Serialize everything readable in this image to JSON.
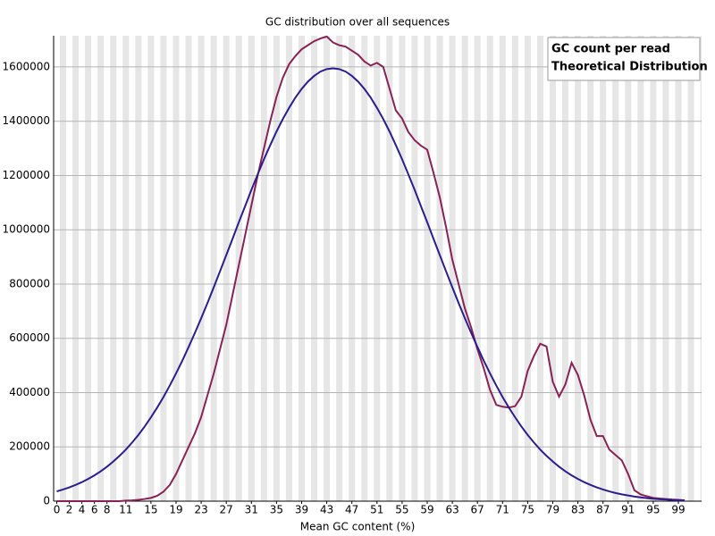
{
  "chart_data": {
    "type": "line",
    "title": "GC distribution over all sequences",
    "x_label": "Mean GC content (%)",
    "x": [
      0,
      1,
      2,
      3,
      4,
      5,
      6,
      7,
      8,
      9,
      10,
      11,
      12,
      13,
      14,
      15,
      16,
      17,
      18,
      19,
      20,
      21,
      22,
      23,
      24,
      25,
      26,
      27,
      28,
      29,
      30,
      31,
      32,
      33,
      34,
      35,
      36,
      37,
      38,
      39,
      40,
      41,
      42,
      43,
      44,
      45,
      46,
      47,
      48,
      49,
      50,
      51,
      52,
      53,
      54,
      55,
      56,
      57,
      58,
      59,
      60,
      61,
      62,
      63,
      64,
      65,
      66,
      67,
      68,
      69,
      70,
      71,
      72,
      73,
      74,
      75,
      76,
      77,
      78,
      79,
      80,
      81,
      82,
      83,
      84,
      85,
      86,
      87,
      88,
      89,
      90,
      91,
      92,
      93,
      94,
      95,
      96,
      97,
      98,
      99,
      100
    ],
    "series": [
      {
        "name": "GC count per read",
        "color": "#882255",
        "values": [
          0,
          0,
          0,
          0,
          0,
          0,
          0,
          0,
          0,
          0,
          0,
          2000,
          3000,
          5000,
          8000,
          12000,
          20000,
          35000,
          60000,
          100000,
          150000,
          200000,
          250000,
          310000,
          390000,
          470000,
          560000,
          650000,
          760000,
          870000,
          980000,
          1090000,
          1200000,
          1300000,
          1400000,
          1490000,
          1560000,
          1610000,
          1640000,
          1665000,
          1680000,
          1695000,
          1705000,
          1712000,
          1690000,
          1680000,
          1675000,
          1660000,
          1645000,
          1620000,
          1605000,
          1615000,
          1600000,
          1520000,
          1440000,
          1410000,
          1360000,
          1330000,
          1310000,
          1295000,
          1210000,
          1120000,
          1010000,
          890000,
          800000,
          710000,
          640000,
          560000,
          490000,
          410000,
          355000,
          348000,
          345000,
          350000,
          385000,
          480000,
          535000,
          580000,
          570000,
          440000,
          385000,
          430000,
          510000,
          465000,
          390000,
          300000,
          240000,
          240000,
          190000,
          170000,
          150000,
          100000,
          40000,
          25000,
          18000,
          12000,
          10000,
          8000,
          6000,
          5000,
          3000
        ]
      },
      {
        "name": "Theoretical Distribution",
        "color": "#2b1d8c",
        "values": [
          36000,
          43000,
          51000,
          60000,
          70000,
          82000,
          95000,
          110000,
          127000,
          146000,
          167000,
          190000,
          216000,
          244000,
          275000,
          309000,
          345000,
          384000,
          426000,
          471000,
          518000,
          568000,
          620000,
          674000,
          730000,
          788000,
          847000,
          907000,
          967000,
          1028000,
          1087000,
          1147000,
          1204000,
          1260000,
          1312000,
          1362000,
          1408000,
          1449000,
          1487000,
          1519000,
          1546000,
          1567000,
          1583000,
          1592000,
          1595000,
          1592000,
          1583000,
          1567000,
          1546000,
          1519000,
          1487000,
          1449000,
          1408000,
          1362000,
          1312000,
          1260000,
          1204000,
          1147000,
          1087000,
          1028000,
          967000,
          907000,
          847000,
          788000,
          730000,
          674000,
          620000,
          568000,
          518000,
          471000,
          426000,
          384000,
          345000,
          309000,
          275000,
          244000,
          216000,
          190000,
          167000,
          146000,
          127000,
          110000,
          95000,
          82000,
          70000,
          60000,
          51000,
          43000,
          36000,
          30000,
          25000,
          21000,
          17000,
          14000,
          11000,
          9000,
          7000,
          6000,
          4000,
          3000,
          3000
        ]
      }
    ],
    "xlim": [
      -0.5,
      102.7
    ],
    "ylim": [
      0,
      1715000
    ],
    "xticks": [
      0,
      2,
      4,
      6,
      8,
      11,
      15,
      19,
      23,
      27,
      31,
      35,
      39,
      43,
      47,
      51,
      55,
      59,
      63,
      67,
      71,
      75,
      79,
      83,
      87,
      91,
      95,
      99
    ],
    "yticks": [
      0,
      200000,
      400000,
      600000,
      800000,
      1000000,
      1200000,
      1400000,
      1600000
    ],
    "grid": true,
    "legend": "top-right"
  }
}
